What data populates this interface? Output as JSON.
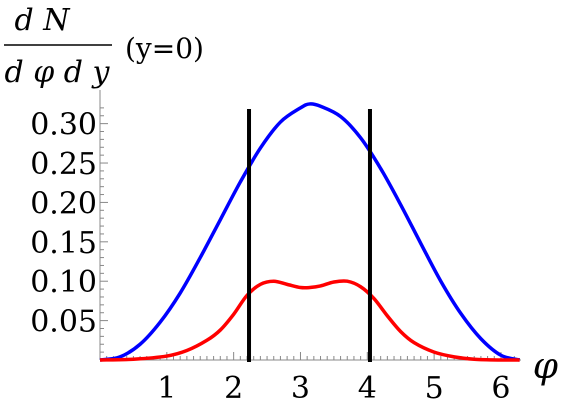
{
  "chart_data": {
    "type": "line",
    "title": "",
    "ylabel": {
      "numerator": "d N",
      "denominator": "d φ d y",
      "note": "(y=0)"
    },
    "xlabel": "φ",
    "xlim": [
      0,
      6.3
    ],
    "ylim": [
      0,
      0.33
    ],
    "x_ticks": [
      {
        "value": 1,
        "label": "1"
      },
      {
        "value": 2,
        "label": "2"
      },
      {
        "value": 3,
        "label": "3"
      },
      {
        "value": 4,
        "label": "4"
      },
      {
        "value": 5,
        "label": "5"
      },
      {
        "value": 6,
        "label": "6"
      }
    ],
    "y_ticks": [
      {
        "value": 0.05,
        "label": "0.05"
      },
      {
        "value": 0.1,
        "label": "0.10"
      },
      {
        "value": 0.15,
        "label": "0.15"
      },
      {
        "value": 0.2,
        "label": "0.20"
      },
      {
        "value": 0.25,
        "label": "0.25"
      },
      {
        "value": 0.3,
        "label": "0.30"
      }
    ],
    "grid": false,
    "vertical_lines": [
      2.23,
      4.04
    ],
    "series": [
      {
        "color": "#0000ff",
        "x": [
          0.0,
          0.3,
          0.6,
          0.9,
          1.2,
          1.5,
          1.8,
          2.1,
          2.4,
          2.7,
          3.0,
          3.14,
          3.3,
          3.6,
          3.9,
          4.2,
          4.5,
          4.8,
          5.1,
          5.4,
          5.7,
          6.0,
          6.28
        ],
        "y": [
          0.0,
          0.004,
          0.02,
          0.048,
          0.085,
          0.13,
          0.178,
          0.226,
          0.269,
          0.302,
          0.32,
          0.325,
          0.322,
          0.309,
          0.282,
          0.243,
          0.197,
          0.148,
          0.1,
          0.059,
          0.027,
          0.006,
          0.0
        ]
      },
      {
        "color": "#ff0000",
        "x": [
          0.0,
          0.5,
          1.0,
          1.3,
          1.6,
          1.8,
          2.0,
          2.2,
          2.4,
          2.6,
          2.8,
          3.0,
          3.14,
          3.3,
          3.5,
          3.7,
          3.9,
          4.1,
          4.3,
          4.5,
          4.7,
          5.0,
          5.3,
          5.6,
          6.0,
          6.28
        ],
        "y": [
          0.0,
          0.001,
          0.005,
          0.012,
          0.025,
          0.038,
          0.058,
          0.082,
          0.096,
          0.1,
          0.096,
          0.092,
          0.092,
          0.094,
          0.099,
          0.1,
          0.093,
          0.078,
          0.056,
          0.036,
          0.022,
          0.01,
          0.004,
          0.001,
          0.0,
          0.0
        ]
      }
    ]
  }
}
